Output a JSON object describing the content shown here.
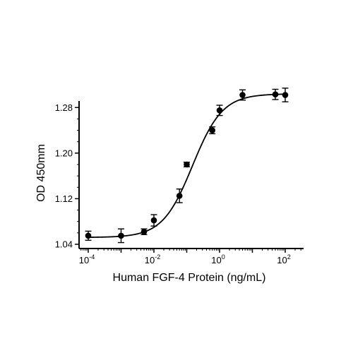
{
  "chart_data": {
    "type": "scatter",
    "xlabel": "Human FGF-4 Protein (ng/mL)",
    "ylabel": "OD 450mm",
    "xscale": "log",
    "xlim": [
      0.0001,
      100
    ],
    "ylim": [
      1.04,
      1.32
    ],
    "x_ticks": [
      {
        "base": "10",
        "exp": "-4"
      },
      {
        "base": "10",
        "exp": "-2"
      },
      {
        "base": "10",
        "exp": "0"
      },
      {
        "base": "10",
        "exp": "2"
      }
    ],
    "y_ticks": [
      "1.04",
      "1.12",
      "1.20",
      "1.28"
    ],
    "grid": false,
    "legend": "none",
    "series": [
      {
        "marker": "filled-circle",
        "color": "#000000",
        "x": [
          0.0001,
          0.001,
          0.005,
          0.01,
          0.06,
          0.1,
          1.0,
          0.6,
          5.0,
          50.0,
          100.0
        ],
        "y": [
          1.055,
          1.055,
          1.062,
          1.082,
          1.125,
          1.18,
          1.275,
          1.24,
          1.302,
          1.303,
          1.302
        ],
        "error": [
          0.008,
          0.012,
          0.005,
          0.01,
          0.012,
          0.004,
          0.009,
          0.006,
          0.009,
          0.009,
          0.012
        ]
      }
    ],
    "fit": {
      "model": "4PL",
      "bottom": 1.052,
      "top": 1.304,
      "ec50": 0.15,
      "hill": 0.95
    }
  }
}
